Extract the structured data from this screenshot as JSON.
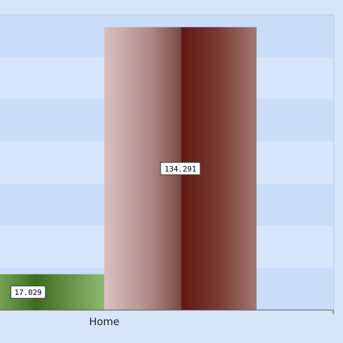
{
  "chart_data": {
    "type": "bar",
    "categories": [
      "Home"
    ],
    "series": [
      {
        "values": [
          17.029
        ],
        "color": "#4e7d2c"
      },
      {
        "values": [
          134.291
        ],
        "color": "#6b231b"
      }
    ],
    "data_labels": [
      "17.029",
      "134.291"
    ],
    "ylim": [
      0,
      140
    ],
    "grid": true,
    "legend": "none",
    "plot_background": "#c9ddf8",
    "plot_background_alt": "#d8e6fb"
  }
}
